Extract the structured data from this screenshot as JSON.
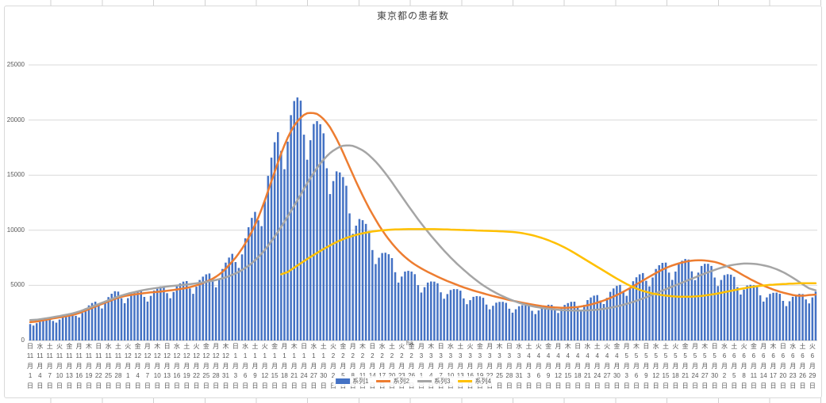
{
  "title": "東京都の患者数",
  "annotation": "ha",
  "legend": [
    {
      "label": "系列1",
      "color": "#4472C4",
      "type": "bar"
    },
    {
      "label": "系列2",
      "color": "#ED7D31",
      "type": "line"
    },
    {
      "label": "系列3",
      "color": "#A5A5A5",
      "type": "line"
    },
    {
      "label": "系列4",
      "color": "#FFC000",
      "type": "line"
    }
  ],
  "colors": {
    "bar_blue": "#4472C4",
    "line_orange": "#ED7D31",
    "line_gray": "#A5A5A5",
    "line_yellow": "#FFC000",
    "gridline": "#d9d9d9",
    "axis_line": "#bfbfbf",
    "tick_text": "#595959"
  },
  "chart_data": {
    "type": "combo",
    "title": "東京都の患者数",
    "xlabel": "",
    "ylabel": "",
    "x_start_date": "2020-11-01",
    "x_end_date": "2021-06-30",
    "x_days": 242,
    "x_tick_interval_days": 3,
    "x_tick_row_format": [
      "weekday_kanji",
      "month_number",
      "月",
      "day_number",
      "日"
    ],
    "weekday_kanji": [
      "日",
      "月",
      "火",
      "水",
      "木",
      "金",
      "土"
    ],
    "y_ticks": [
      0,
      5000,
      10000,
      15000,
      20000,
      25000
    ],
    "ylim": [
      0,
      25000
    ],
    "grid": true,
    "legend_position": "bottom",
    "series": [
      {
        "name": "系列1",
        "type": "bar",
        "color": "#4472C4",
        "note": "daily bars, values estimated from gridlines; keypoints are [day_index_from_2020-11-01, value]; weekly_pattern multipliers Sun..Sat reproduce weekday sawtooth",
        "weekly_pattern": [
          0.93,
          0.82,
          0.93,
          1.03,
          1.07,
          1.09,
          1.08
        ],
        "keypoints": [
          [
            0,
            1600
          ],
          [
            7,
            1900
          ],
          [
            14,
            2400
          ],
          [
            21,
            3400
          ],
          [
            26,
            4100
          ],
          [
            33,
            4150
          ],
          [
            40,
            4500
          ],
          [
            47,
            4900
          ],
          [
            54,
            5500
          ],
          [
            58,
            6000
          ],
          [
            61,
            6900
          ],
          [
            65,
            8400
          ],
          [
            69,
            10800
          ],
          [
            73,
            14500
          ],
          [
            77,
            18500
          ],
          [
            81,
            20300
          ],
          [
            85,
            20000
          ],
          [
            88,
            18600
          ],
          [
            92,
            16200
          ],
          [
            96,
            13600
          ],
          [
            100,
            11200
          ],
          [
            104,
            9200
          ],
          [
            108,
            7700
          ],
          [
            113,
            6400
          ],
          [
            119,
            5400
          ],
          [
            126,
            4700
          ],
          [
            133,
            4100
          ],
          [
            140,
            3500
          ],
          [
            147,
            3100
          ],
          [
            154,
            2900
          ],
          [
            161,
            3000
          ],
          [
            168,
            3300
          ],
          [
            175,
            3900
          ],
          [
            182,
            4800
          ],
          [
            187,
            5500
          ],
          [
            192,
            6300
          ],
          [
            197,
            6700
          ],
          [
            202,
            6800
          ],
          [
            207,
            6500
          ],
          [
            212,
            5900
          ],
          [
            217,
            5200
          ],
          [
            222,
            4600
          ],
          [
            227,
            4100
          ],
          [
            232,
            3800
          ],
          [
            237,
            3900
          ],
          [
            241,
            4300
          ]
        ]
      },
      {
        "name": "系列2",
        "type": "line",
        "color": "#ED7D31",
        "keypoints": [
          [
            0,
            1600
          ],
          [
            7,
            2000
          ],
          [
            14,
            2350
          ],
          [
            21,
            3200
          ],
          [
            28,
            4000
          ],
          [
            35,
            4300
          ],
          [
            42,
            4500
          ],
          [
            49,
            4800
          ],
          [
            54,
            5300
          ],
          [
            58,
            5900
          ],
          [
            61,
            6800
          ],
          [
            65,
            8200
          ],
          [
            70,
            11000
          ],
          [
            75,
            15300
          ],
          [
            79,
            18600
          ],
          [
            83,
            20400
          ],
          [
            86,
            20800
          ],
          [
            90,
            20300
          ],
          [
            94,
            18400
          ],
          [
            98,
            15700
          ],
          [
            102,
            13100
          ],
          [
            106,
            10900
          ],
          [
            110,
            9100
          ],
          [
            115,
            7500
          ],
          [
            120,
            6500
          ],
          [
            127,
            5500
          ],
          [
            134,
            4700
          ],
          [
            141,
            4100
          ],
          [
            148,
            3600
          ],
          [
            155,
            3200
          ],
          [
            160,
            3000
          ],
          [
            165,
            2950
          ],
          [
            170,
            3100
          ],
          [
            175,
            3500
          ],
          [
            180,
            4100
          ],
          [
            185,
            4900
          ],
          [
            190,
            5800
          ],
          [
            195,
            6600
          ],
          [
            200,
            7100
          ],
          [
            204,
            7300
          ],
          [
            208,
            7250
          ],
          [
            212,
            7000
          ],
          [
            216,
            6400
          ],
          [
            220,
            5700
          ],
          [
            224,
            5100
          ],
          [
            228,
            4600
          ],
          [
            232,
            4250
          ],
          [
            236,
            4000
          ],
          [
            241,
            4200
          ]
        ]
      },
      {
        "name": "系列3",
        "type": "line",
        "color": "#A5A5A5",
        "keypoints": [
          [
            0,
            1800
          ],
          [
            7,
            2100
          ],
          [
            14,
            2500
          ],
          [
            21,
            3300
          ],
          [
            28,
            4100
          ],
          [
            35,
            4600
          ],
          [
            42,
            4900
          ],
          [
            49,
            5100
          ],
          [
            56,
            5400
          ],
          [
            61,
            5800
          ],
          [
            66,
            6500
          ],
          [
            71,
            7800
          ],
          [
            76,
            9800
          ],
          [
            81,
            12200
          ],
          [
            86,
            14800
          ],
          [
            90,
            16500
          ],
          [
            94,
            17500
          ],
          [
            97,
            17800
          ],
          [
            101,
            17500
          ],
          [
            105,
            16600
          ],
          [
            109,
            15200
          ],
          [
            113,
            13500
          ],
          [
            117,
            11800
          ],
          [
            121,
            10200
          ],
          [
            125,
            8800
          ],
          [
            129,
            7500
          ],
          [
            133,
            6400
          ],
          [
            137,
            5400
          ],
          [
            141,
            4600
          ],
          [
            145,
            4000
          ],
          [
            149,
            3500
          ],
          [
            153,
            3150
          ],
          [
            158,
            2900
          ],
          [
            163,
            2750
          ],
          [
            168,
            2700
          ],
          [
            173,
            2750
          ],
          [
            178,
            2950
          ],
          [
            183,
            3300
          ],
          [
            188,
            3800
          ],
          [
            193,
            4400
          ],
          [
            198,
            5000
          ],
          [
            203,
            5600
          ],
          [
            208,
            6200
          ],
          [
            213,
            6700
          ],
          [
            217,
            6950
          ],
          [
            221,
            7000
          ],
          [
            225,
            6850
          ],
          [
            229,
            6500
          ],
          [
            233,
            5900
          ],
          [
            236,
            5300
          ],
          [
            239,
            4700
          ],
          [
            241,
            4400
          ]
        ]
      },
      {
        "name": "系列4",
        "type": "line",
        "color": "#FFC000",
        "keypoints": [
          [
            77,
            5800
          ],
          [
            81,
            6600
          ],
          [
            85,
            7400
          ],
          [
            90,
            8300
          ],
          [
            95,
            9100
          ],
          [
            100,
            9600
          ],
          [
            105,
            9900
          ],
          [
            110,
            10050
          ],
          [
            115,
            10100
          ],
          [
            125,
            10100
          ],
          [
            135,
            10000
          ],
          [
            145,
            9900
          ],
          [
            150,
            9800
          ],
          [
            155,
            9500
          ],
          [
            160,
            9000
          ],
          [
            165,
            8300
          ],
          [
            170,
            7400
          ],
          [
            175,
            6500
          ],
          [
            180,
            5600
          ],
          [
            185,
            4800
          ],
          [
            190,
            4300
          ],
          [
            195,
            4050
          ],
          [
            200,
            3950
          ],
          [
            205,
            4000
          ],
          [
            210,
            4200
          ],
          [
            215,
            4500
          ],
          [
            220,
            4800
          ],
          [
            225,
            5000
          ],
          [
            230,
            5100
          ],
          [
            235,
            5180
          ],
          [
            241,
            5200
          ]
        ]
      }
    ]
  }
}
